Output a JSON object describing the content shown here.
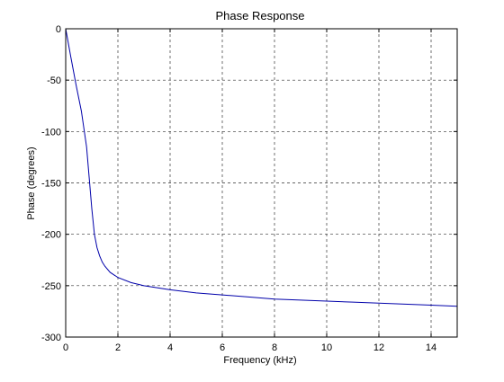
{
  "chart_data": {
    "type": "line",
    "title": "Phase  Response",
    "xlabel": "Frequency (kHz)",
    "ylabel": "Phase (degrees)",
    "xlim": [
      0,
      15
    ],
    "ylim": [
      -300,
      0
    ],
    "xticks": [
      0,
      2,
      4,
      6,
      8,
      10,
      12,
      14
    ],
    "yticks": [
      0,
      -50,
      -100,
      -150,
      -200,
      -250,
      -300
    ],
    "grid": true,
    "grid_style": "dashed",
    "line_color": "#0000aa",
    "axes_color": "#000000",
    "background": "#ffffff",
    "series": [
      {
        "x": [
          0,
          0.2,
          0.4,
          0.6,
          0.8,
          1.0,
          1.1,
          1.2,
          1.3,
          1.4,
          1.5,
          1.7,
          2.0,
          2.5,
          3.0,
          4.0,
          5.0,
          6.0,
          7.0,
          8.0,
          9.0,
          10.0,
          11.0,
          12.0,
          13.0,
          14.0,
          15.0
        ],
        "y": [
          0,
          -28,
          -55,
          -80,
          -115,
          -175,
          -200,
          -213,
          -221,
          -227,
          -231,
          -237,
          -242,
          -247,
          -250,
          -254,
          -257,
          -259,
          -261,
          -263,
          -264,
          -265,
          -266,
          -267,
          -268,
          -269,
          -270
        ]
      }
    ]
  }
}
